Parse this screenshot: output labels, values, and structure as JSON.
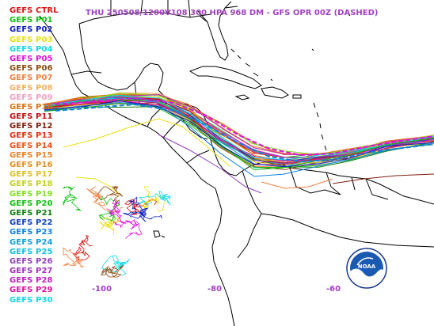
{
  "title": "THU 250508/1200V108  300 HPA 968 DM - GFS OPR 00Z (DASHED)",
  "legend": [
    {
      "label": "GEFS CTRL",
      "color": "#e01010"
    },
    {
      "label": "GEFS P01",
      "color": "#10c010"
    },
    {
      "label": "GEFS P02",
      "color": "#1020c0"
    },
    {
      "label": "GEFS P03",
      "color": "#e8e010"
    },
    {
      "label": "GEFS P04",
      "color": "#10d8e8"
    },
    {
      "label": "GEFS P05",
      "color": "#e010e0"
    },
    {
      "label": "GEFS P06",
      "color": "#8a4a10"
    },
    {
      "label": "GEFS P07",
      "color": "#f08040"
    },
    {
      "label": "GEFS P08",
      "color": "#f0b060"
    },
    {
      "label": "GEFS P09",
      "color": "#f0a0c0"
    },
    {
      "label": "GEFS P10",
      "color": "#e07010"
    },
    {
      "label": "GEFS P11",
      "color": "#c01010"
    },
    {
      "label": "GEFS P12",
      "color": "#802010"
    },
    {
      "label": "GEFS P13",
      "color": "#e03010"
    },
    {
      "label": "GEFS P14",
      "color": "#f05010"
    },
    {
      "label": "GEFS P15",
      "color": "#f08020"
    },
    {
      "label": "GEFS P16",
      "color": "#e09020"
    },
    {
      "label": "GEFS P17",
      "color": "#e0c020"
    },
    {
      "label": "GEFS P18",
      "color": "#c0d020"
    },
    {
      "label": "GEFS P19",
      "color": "#80e020"
    },
    {
      "label": "GEFS P20",
      "color": "#10c010"
    },
    {
      "label": "GEFS P21",
      "color": "#108010"
    },
    {
      "label": "GEFS P22",
      "color": "#1040c0"
    },
    {
      "label": "GEFS P23",
      "color": "#1080e0"
    },
    {
      "label": "GEFS P24",
      "color": "#10a0e0"
    },
    {
      "label": "GEFS P25",
      "color": "#10c0e0"
    },
    {
      "label": "GEFS P26",
      "color": "#9040c0"
    },
    {
      "label": "GEFS P27",
      "color": "#a030c0"
    },
    {
      "label": "GEFS P28",
      "color": "#c020c0"
    },
    {
      "label": "GEFS P29",
      "color": "#e010a0"
    },
    {
      "label": "GEFS P30",
      "color": "#10d8e8"
    }
  ],
  "longitude_labels": [
    "-100",
    "-80",
    "-60"
  ],
  "logo_text": "NOAA",
  "colors": {
    "title": "#a040c0",
    "coastline": "#000000",
    "background": "#ffffff"
  }
}
